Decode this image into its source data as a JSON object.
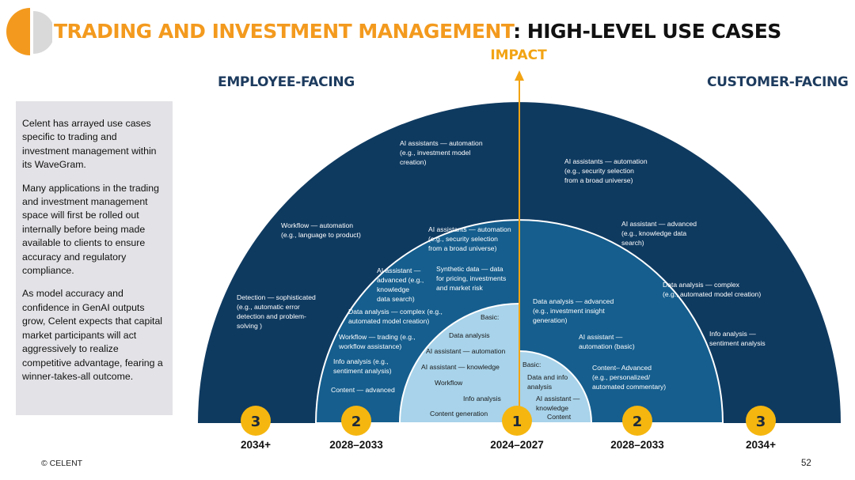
{
  "header": {
    "title_highlight": "TRADING AND INVESTMENT MANAGEMENT",
    "title_rest": ": HIGH-LEVEL USE CASES"
  },
  "impact_label": "IMPACT",
  "side_headings": {
    "employee": "EMPLOYEE-FACING",
    "customer": "CUSTOMER-FACING"
  },
  "sidebar": {
    "paragraphs": [
      "Celent has arrayed use cases specific to trading and investment management within its WaveGram.",
      "Many applications in the trading and investment management space will first be rolled out internally before being made available to clients to ensure accuracy and regulatory compliance.",
      "As model accuracy and confidence in GenAI outputs grow, Celent expects that capital market participants will act aggressively to realize competitive advantage, fearing a winner-takes-all outcome."
    ]
  },
  "colors": {
    "outer": "#0f3a60",
    "middle": "#155e8e",
    "inner": "#a8d3ea",
    "badge": "#f5b60f",
    "axis": "#f2a414",
    "heading": "#1d3b5e"
  },
  "waves": [
    {
      "badge": "3",
      "period": "2034+"
    },
    {
      "badge": "2",
      "period": "2028–2033"
    },
    {
      "badge": "1",
      "period": "2024–2027"
    },
    {
      "badge": "2",
      "period": "2028–2033"
    },
    {
      "badge": "3",
      "period": "2034+"
    }
  ],
  "use_cases": {
    "outer_left": [
      [
        "AI assistants — automation",
        "(e.g., investment model",
        "creation)"
      ],
      [
        "Workflow — automation",
        "(e.g., language to product)"
      ],
      [
        "Detection — sophisticated",
        "(e.g., automatic error",
        "detection and problem-",
        "solving )"
      ]
    ],
    "outer_right": [
      [
        "AI assistants — automation",
        "(e.g., security selection",
        "from a broad universe)"
      ],
      [
        "AI assistant — advanced",
        "(e.g., knowledge data",
        "search)"
      ],
      [
        "Data analysis — complex",
        "(e.g., automated model creation)"
      ],
      [
        "Info analysis —",
        "sentiment analysis"
      ]
    ],
    "middle_left": [
      [
        "AI assistants — automation",
        "(e.g., security selection",
        "from a broad universe)"
      ],
      [
        "AI assistant —",
        "advanced (e.g.,",
        "knowledge",
        "data search)"
      ],
      [
        "Synthetic data — data",
        "for pricing, investments",
        "and market risk"
      ],
      [
        "Data analysis — complex (e.g.,",
        "automated model creation)"
      ],
      [
        "Workflow — trading (e.g.,",
        "workflow assistance)"
      ],
      [
        "Info analysis (e.g.,",
        "sentiment analysis)"
      ],
      [
        "Content — advanced"
      ]
    ],
    "middle_right": [
      [
        "Data analysis — advanced",
        "(e.g., investment insight",
        "generation)"
      ],
      [
        "AI assistant —",
        "automation (basic)"
      ],
      [
        "Content– Advanced",
        "(e.g., personalized/",
        "automated commentary)"
      ]
    ],
    "inner_left": [
      [
        "Basic:"
      ],
      [
        "Data analysis"
      ],
      [
        "AI assistant — automation"
      ],
      [
        "AI assistant — knowledge"
      ],
      [
        "Workflow"
      ],
      [
        "Info analysis"
      ],
      [
        "Content generation"
      ]
    ],
    "inner_right": [
      [
        "Basic:"
      ],
      [
        "Data  and info",
        "analysis"
      ],
      [
        "AI assistant —",
        "knowledge"
      ],
      [
        "Content"
      ]
    ]
  },
  "footer": {
    "copyright": "© CELENT",
    "page_number": "52"
  }
}
